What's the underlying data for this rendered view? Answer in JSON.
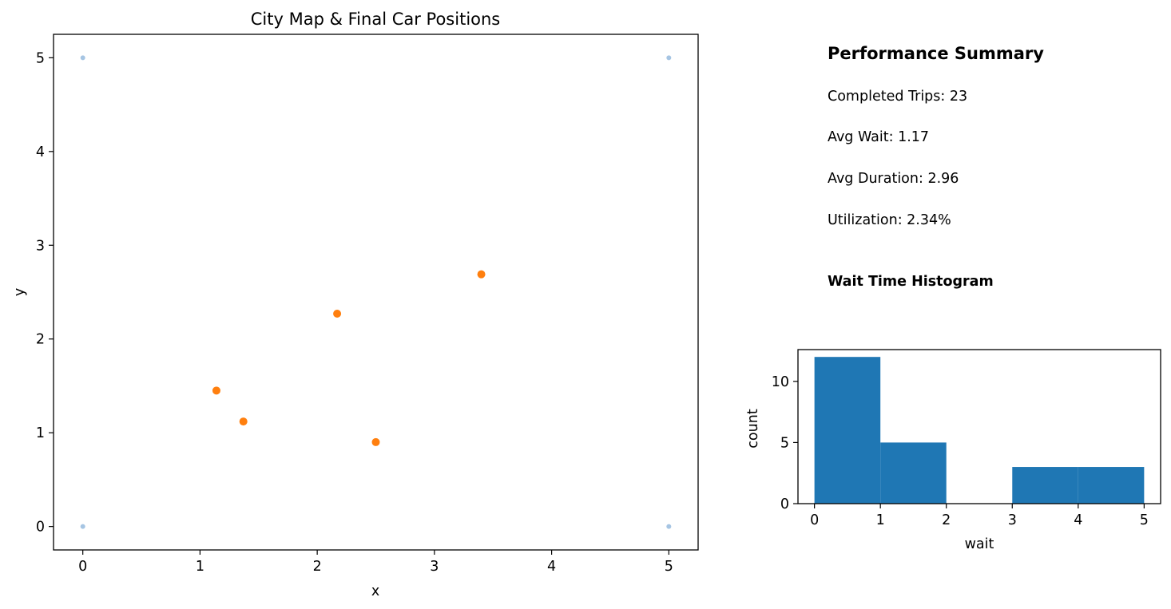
{
  "chart_data": [
    {
      "type": "scatter",
      "title": "City Map & Final Car Positions",
      "xlabel": "x",
      "ylabel": "y",
      "xlim": [
        -0.25,
        5.25
      ],
      "ylim": [
        -0.25,
        5.25
      ],
      "xticks": [
        "0",
        "1",
        "2",
        "3",
        "4",
        "5"
      ],
      "yticks": [
        "0",
        "1",
        "2",
        "3",
        "4",
        "5"
      ],
      "grid": false,
      "series": [
        {
          "color": "#a6c5e3",
          "points": [
            [
              0,
              0
            ],
            [
              0,
              5
            ],
            [
              5,
              0
            ],
            [
              5,
              5
            ]
          ]
        },
        {
          "color": "#ff7f0e",
          "points": [
            [
              1.14,
              1.45
            ],
            [
              1.37,
              1.12
            ],
            [
              2.17,
              2.27
            ],
            [
              2.5,
              0.9
            ],
            [
              3.4,
              2.69
            ]
          ]
        }
      ]
    },
    {
      "type": "bar",
      "title": "",
      "xlabel": "wait",
      "ylabel": "count",
      "xlim": [
        -0.25,
        5.25
      ],
      "ylim": [
        0,
        12.6
      ],
      "xticks": [
        "0",
        "1",
        "2",
        "3",
        "4",
        "5"
      ],
      "yticks": [
        "0",
        "5",
        "10"
      ],
      "color": "#1f77b4",
      "bins": [
        [
          0,
          1
        ],
        [
          1,
          2
        ],
        [
          2,
          3
        ],
        [
          3,
          4
        ],
        [
          4,
          5
        ]
      ],
      "values": [
        12,
        5,
        0,
        3,
        3
      ]
    }
  ],
  "summary": {
    "title": "Performance Summary",
    "lines": [
      "Completed Trips: 23",
      "Avg Wait: 1.17",
      "Avg Duration: 2.96",
      "Utilization: 2.34%"
    ],
    "histogram_heading": "Wait Time Histogram"
  }
}
